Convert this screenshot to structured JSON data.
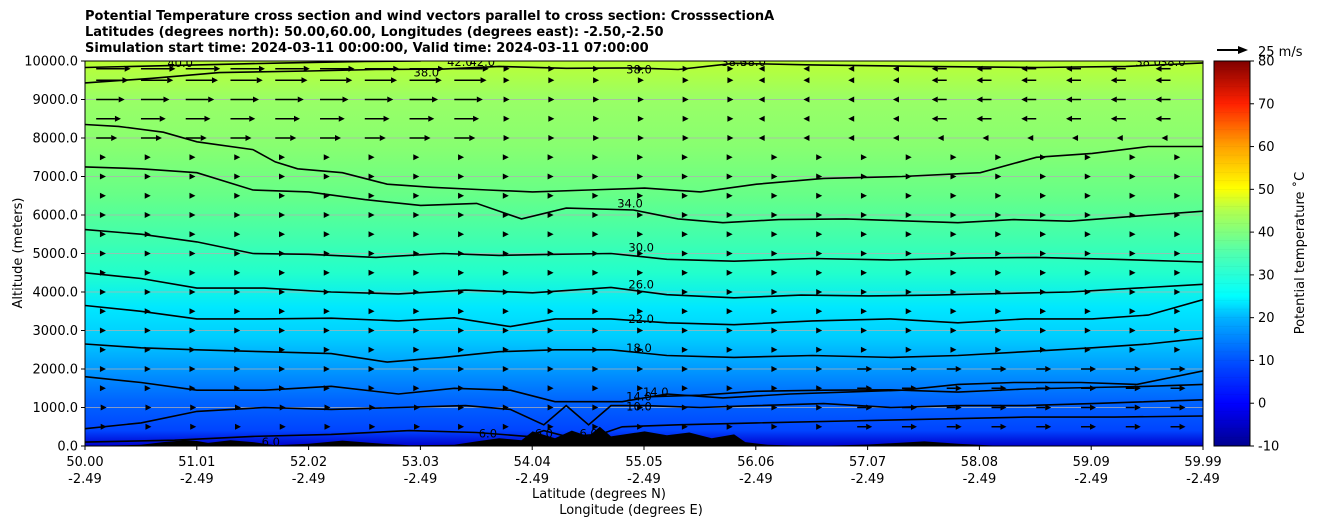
{
  "title_lines": [
    "Potential Temperature cross section and wind vectors parallel to cross section: CrosssectionA",
    "Latitudes (degrees north): 50.00,60.00, Longitudes (degrees east): -2.50,-2.50",
    "Simulation start time: 2024-03-11 00:00:00, Valid time: 2024-03-11 07:00:00"
  ],
  "quiver_key_label": "25 m/s",
  "colors": {
    "background_field": "#8cff66",
    "contour_line": "#000000",
    "terrain": "#000000",
    "grid": "#b0b0b0"
  },
  "chart_data": {
    "type": "heatmap",
    "xlabel": "Latitude (degrees N)",
    "xlabel2": "Longitude (degrees E)",
    "ylabel": "Altitude (meters)",
    "xlim": [
      50.0,
      59.99
    ],
    "ylim": [
      0,
      10000
    ],
    "x_ticks": [
      {
        "lat": "50.00",
        "lon": "-2.49"
      },
      {
        "lat": "51.01",
        "lon": "-2.49"
      },
      {
        "lat": "52.02",
        "lon": "-2.49"
      },
      {
        "lat": "53.03",
        "lon": "-2.49"
      },
      {
        "lat": "54.04",
        "lon": "-2.49"
      },
      {
        "lat": "55.05",
        "lon": "-2.49"
      },
      {
        "lat": "56.06",
        "lon": "-2.49"
      },
      {
        "lat": "57.07",
        "lon": "-2.49"
      },
      {
        "lat": "58.08",
        "lon": "-2.49"
      },
      {
        "lat": "59.09",
        "lon": "-2.49"
      },
      {
        "lat": "59.99",
        "lon": "-2.49"
      }
    ],
    "y_ticks": [
      "0.0",
      "1000.0",
      "2000.0",
      "3000.0",
      "4000.0",
      "5000.0",
      "6000.0",
      "7000.0",
      "8000.0",
      "9000.0",
      "10000.0"
    ],
    "y_tick_values": [
      0,
      1000,
      2000,
      3000,
      4000,
      5000,
      6000,
      7000,
      8000,
      9000,
      10000
    ],
    "grid": "horizontal",
    "colorbar": {
      "label": "Potential temperature $^\\circ$C",
      "label_display": "Potential temperature ˚C",
      "range": [
        -10,
        80
      ],
      "ticks": [
        -10,
        0,
        10,
        20,
        30,
        40,
        50,
        60,
        70,
        80
      ],
      "cmap": "jet"
    },
    "contour_labels": [
      {
        "text": "40.0",
        "theta": 40,
        "lat": 50.85,
        "alt": 9950
      },
      {
        "text": "38.0",
        "theta": 38,
        "lat": 53.05,
        "alt": 9700
      },
      {
        "text": "42.0",
        "theta": 42,
        "lat": 53.35,
        "alt": 9980
      },
      {
        "text": "42.0",
        "theta": 42,
        "lat": 53.55,
        "alt": 9980
      },
      {
        "text": "38.0",
        "theta": 38,
        "lat": 54.95,
        "alt": 9780
      },
      {
        "text": "38.0",
        "theta": 38,
        "lat": 55.8,
        "alt": 9980
      },
      {
        "text": "38.0",
        "theta": 38,
        "lat": 55.97,
        "alt": 9980
      },
      {
        "text": "38.0",
        "theta": 38,
        "lat": 59.5,
        "alt": 9980
      },
      {
        "text": "38.0",
        "theta": 38,
        "lat": 59.72,
        "alt": 9980
      },
      {
        "text": "34.0",
        "theta": 34,
        "lat": 54.87,
        "alt": 6300
      },
      {
        "text": "30.0",
        "theta": 30,
        "lat": 54.97,
        "alt": 5150
      },
      {
        "text": "26.0",
        "theta": 26,
        "lat": 54.97,
        "alt": 4200
      },
      {
        "text": "22.0",
        "theta": 22,
        "lat": 54.97,
        "alt": 3300
      },
      {
        "text": "18.0",
        "theta": 18,
        "lat": 54.95,
        "alt": 2550
      },
      {
        "text": "14.0",
        "theta": 14,
        "lat": 54.95,
        "alt": 1280
      },
      {
        "text": "14.0",
        "theta": 14,
        "lat": 55.1,
        "alt": 1400
      },
      {
        "text": "10.0",
        "theta": 10,
        "lat": 54.95,
        "alt": 1030
      },
      {
        "text": "6.0",
        "theta": 6,
        "lat": 51.66,
        "alt": 100
      },
      {
        "text": "6.0",
        "theta": 6,
        "lat": 53.6,
        "alt": 330
      },
      {
        "text": "6.0",
        "theta": 6,
        "lat": 54.1,
        "alt": 330
      },
      {
        "text": "6.0",
        "theta": 6,
        "lat": 54.5,
        "alt": 330
      }
    ],
    "contours": [
      {
        "theta": 40,
        "points": [
          [
            50.0,
            9830
          ],
          [
            51.0,
            9900
          ],
          [
            51.8,
            9950
          ],
          [
            52.5,
            9990
          ],
          [
            53.0,
            10000
          ]
        ]
      },
      {
        "theta": 38,
        "points": [
          [
            50.0,
            9430
          ],
          [
            50.6,
            9550
          ],
          [
            51.2,
            9700
          ],
          [
            52.0,
            9740
          ],
          [
            52.6,
            9780
          ],
          [
            53.2,
            9790
          ],
          [
            53.7,
            9860
          ],
          [
            54.3,
            9810
          ],
          [
            54.9,
            9820
          ],
          [
            55.3,
            9780
          ],
          [
            55.8,
            9940
          ],
          [
            56.5,
            9900
          ],
          [
            57.5,
            9860
          ],
          [
            58.5,
            9830
          ],
          [
            59.3,
            9860
          ],
          [
            59.99,
            9950
          ]
        ]
      },
      {
        "theta": 36,
        "points": [
          [
            50.0,
            8350
          ],
          [
            50.3,
            8300
          ],
          [
            50.7,
            8150
          ],
          [
            51.0,
            7900
          ],
          [
            51.5,
            7700
          ],
          [
            51.7,
            7380
          ],
          [
            51.9,
            7200
          ],
          [
            52.3,
            7100
          ],
          [
            52.7,
            6800
          ],
          [
            53.1,
            6720
          ],
          [
            53.6,
            6650
          ],
          [
            54.0,
            6600
          ],
          [
            54.5,
            6650
          ],
          [
            55.0,
            6700
          ],
          [
            55.5,
            6600
          ],
          [
            56.0,
            6800
          ],
          [
            56.6,
            6950
          ],
          [
            57.3,
            7000
          ],
          [
            58.0,
            7100
          ],
          [
            58.5,
            7500
          ],
          [
            59.0,
            7600
          ],
          [
            59.5,
            7780
          ],
          [
            59.99,
            7780
          ]
        ]
      },
      {
        "theta": 34,
        "points": [
          [
            50.0,
            7250
          ],
          [
            50.5,
            7200
          ],
          [
            51.0,
            7100
          ],
          [
            51.5,
            6650
          ],
          [
            52.0,
            6600
          ],
          [
            52.5,
            6400
          ],
          [
            53.0,
            6250
          ],
          [
            53.5,
            6300
          ],
          [
            53.9,
            5900
          ],
          [
            54.3,
            6180
          ],
          [
            54.9,
            6130
          ],
          [
            55.3,
            5900
          ],
          [
            55.7,
            5800
          ],
          [
            56.2,
            5880
          ],
          [
            56.8,
            5900
          ],
          [
            57.3,
            5850
          ],
          [
            57.8,
            5800
          ],
          [
            58.3,
            5880
          ],
          [
            58.8,
            5840
          ],
          [
            59.3,
            5950
          ],
          [
            59.99,
            6100
          ]
        ]
      },
      {
        "theta": 30,
        "points": [
          [
            50.0,
            5620
          ],
          [
            50.5,
            5500
          ],
          [
            51.0,
            5300
          ],
          [
            51.5,
            5000
          ],
          [
            52.0,
            4980
          ],
          [
            52.6,
            4900
          ],
          [
            53.2,
            5000
          ],
          [
            53.7,
            4950
          ],
          [
            54.2,
            4980
          ],
          [
            54.7,
            5000
          ],
          [
            55.2,
            4850
          ],
          [
            55.8,
            4800
          ],
          [
            56.5,
            4870
          ],
          [
            57.2,
            4830
          ],
          [
            57.9,
            4880
          ],
          [
            58.5,
            4900
          ],
          [
            59.2,
            4850
          ],
          [
            59.99,
            4780
          ]
        ]
      },
      {
        "theta": 26,
        "points": [
          [
            50.0,
            4500
          ],
          [
            50.5,
            4350
          ],
          [
            51.0,
            4100
          ],
          [
            51.6,
            4100
          ],
          [
            52.2,
            4000
          ],
          [
            52.8,
            3950
          ],
          [
            53.4,
            4050
          ],
          [
            54.0,
            3980
          ],
          [
            54.7,
            4120
          ],
          [
            55.2,
            3930
          ],
          [
            55.8,
            3850
          ],
          [
            56.4,
            3920
          ],
          [
            57.0,
            3900
          ],
          [
            57.6,
            3920
          ],
          [
            58.2,
            3960
          ],
          [
            58.8,
            4000
          ],
          [
            59.4,
            4100
          ],
          [
            59.99,
            4200
          ]
        ]
      },
      {
        "theta": 22,
        "points": [
          [
            50.0,
            3650
          ],
          [
            50.5,
            3500
          ],
          [
            51.0,
            3300
          ],
          [
            51.6,
            3300
          ],
          [
            52.2,
            3320
          ],
          [
            52.8,
            3250
          ],
          [
            53.3,
            3330
          ],
          [
            53.8,
            3100
          ],
          [
            54.2,
            3300
          ],
          [
            54.7,
            3300
          ],
          [
            55.2,
            3200
          ],
          [
            55.8,
            3150
          ],
          [
            56.5,
            3250
          ],
          [
            57.2,
            3300
          ],
          [
            57.8,
            3200
          ],
          [
            58.4,
            3300
          ],
          [
            59.0,
            3300
          ],
          [
            59.5,
            3400
          ],
          [
            59.99,
            3800
          ]
        ]
      },
      {
        "theta": 18,
        "points": [
          [
            50.0,
            2650
          ],
          [
            50.5,
            2550
          ],
          [
            51.0,
            2500
          ],
          [
            51.6,
            2450
          ],
          [
            52.2,
            2400
          ],
          [
            52.7,
            2180
          ],
          [
            53.2,
            2300
          ],
          [
            53.7,
            2450
          ],
          [
            54.2,
            2500
          ],
          [
            54.7,
            2500
          ],
          [
            55.2,
            2350
          ],
          [
            55.8,
            2300
          ],
          [
            56.5,
            2350
          ],
          [
            57.2,
            2300
          ],
          [
            57.8,
            2350
          ],
          [
            58.4,
            2450
          ],
          [
            59.0,
            2550
          ],
          [
            59.5,
            2650
          ],
          [
            59.99,
            2800
          ]
        ]
      },
      {
        "theta": 14,
        "points": [
          [
            50.0,
            1800
          ],
          [
            50.5,
            1650
          ],
          [
            51.0,
            1450
          ],
          [
            51.6,
            1450
          ],
          [
            52.2,
            1550
          ],
          [
            52.8,
            1350
          ],
          [
            53.3,
            1500
          ],
          [
            53.8,
            1450
          ],
          [
            54.2,
            1150
          ],
          [
            54.5,
            1150
          ],
          [
            54.8,
            1150
          ],
          [
            55.2,
            1350
          ],
          [
            55.7,
            1250
          ],
          [
            56.3,
            1350
          ],
          [
            56.8,
            1400
          ],
          [
            57.3,
            1450
          ],
          [
            57.8,
            1600
          ],
          [
            58.3,
            1650
          ],
          [
            58.9,
            1650
          ],
          [
            59.4,
            1600
          ],
          [
            59.99,
            1950
          ]
        ]
      },
      {
        "theta": 12,
        "points": [
          [
            55.05,
            1280
          ],
          [
            55.5,
            1320
          ],
          [
            56.0,
            1420
          ],
          [
            56.6,
            1450
          ],
          [
            57.2,
            1460
          ],
          [
            57.8,
            1400
          ],
          [
            58.4,
            1480
          ],
          [
            59.0,
            1520
          ],
          [
            59.5,
            1550
          ],
          [
            59.99,
            1600
          ]
        ]
      },
      {
        "theta": 10,
        "points": [
          [
            50.0,
            450
          ],
          [
            50.5,
            600
          ],
          [
            51.0,
            900
          ],
          [
            51.6,
            1000
          ],
          [
            52.2,
            950
          ],
          [
            52.8,
            1000
          ],
          [
            53.4,
            1050
          ],
          [
            53.8,
            950
          ],
          [
            54.1,
            550
          ],
          [
            54.3,
            1050
          ],
          [
            54.5,
            550
          ],
          [
            54.7,
            1050
          ],
          [
            55.0,
            1050
          ],
          [
            55.5,
            1000
          ],
          [
            56.0,
            1050
          ],
          [
            56.6,
            1100
          ],
          [
            57.2,
            1000
          ],
          [
            57.8,
            1050
          ],
          [
            58.4,
            1050
          ],
          [
            59.0,
            1100
          ],
          [
            59.99,
            1200
          ]
        ]
      },
      {
        "theta": 8,
        "points": [
          [
            50.0,
            100
          ],
          [
            50.8,
            150
          ],
          [
            51.5,
            250
          ],
          [
            52.2,
            300
          ],
          [
            52.9,
            400
          ],
          [
            53.5,
            350
          ],
          [
            53.95,
            250
          ],
          [
            54.1,
            400
          ],
          [
            54.3,
            250
          ],
          [
            54.6,
            300
          ],
          [
            54.8,
            500
          ],
          [
            55.3,
            550
          ],
          [
            56.0,
            600
          ],
          [
            56.8,
            650
          ],
          [
            57.6,
            700
          ],
          [
            58.4,
            750
          ],
          [
            59.2,
            750
          ],
          [
            59.99,
            780
          ]
        ]
      }
    ],
    "terrain_profile": [
      [
        50.0,
        0
      ],
      [
        50.5,
        30
      ],
      [
        50.7,
        100
      ],
      [
        50.9,
        150
      ],
      [
        51.0,
        130
      ],
      [
        51.1,
        80
      ],
      [
        51.3,
        150
      ],
      [
        51.5,
        100
      ],
      [
        51.7,
        20
      ],
      [
        52.0,
        60
      ],
      [
        52.3,
        140
      ],
      [
        52.6,
        70
      ],
      [
        52.9,
        20
      ],
      [
        53.3,
        30
      ],
      [
        53.5,
        120
      ],
      [
        53.7,
        200
      ],
      [
        53.9,
        150
      ],
      [
        54.0,
        380
      ],
      [
        54.2,
        200
      ],
      [
        54.35,
        400
      ],
      [
        54.5,
        250
      ],
      [
        54.6,
        500
      ],
      [
        54.7,
        250
      ],
      [
        55.0,
        380
      ],
      [
        55.2,
        280
      ],
      [
        55.4,
        350
      ],
      [
        55.6,
        200
      ],
      [
        55.8,
        300
      ],
      [
        55.9,
        100
      ],
      [
        56.1,
        30
      ],
      [
        56.5,
        0
      ],
      [
        57.0,
        40
      ],
      [
        57.5,
        120
      ],
      [
        57.8,
        60
      ],
      [
        58.2,
        0
      ],
      [
        59.99,
        0
      ]
    ],
    "wind_vectors_note": "arrows parallel to cross section; strongest positive (southerly) near 8500-9500 m around 50-53N; weak negative near 9000-10000 m north of 58N",
    "wind_key_speed_ms": 25
  }
}
